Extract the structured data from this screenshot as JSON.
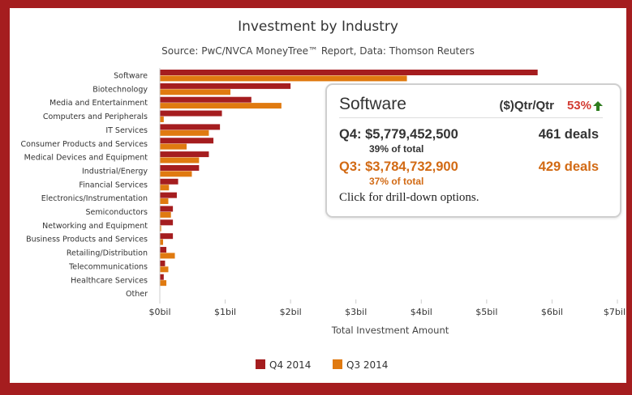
{
  "chart_data": {
    "type": "bar",
    "orientation": "horizontal",
    "title": "Investment by Industry",
    "subtitle": "Source: PwC/NVCA MoneyTree™ Report, Data: Thomson Reuters",
    "xlabel": "Total Investment Amount",
    "xlim": [
      0,
      7
    ],
    "x_unit": "billion USD",
    "x_ticks": [
      "$0bil",
      "$1bil",
      "$2bil",
      "$3bil",
      "$4bil",
      "$5bil",
      "$6bil",
      "$7bil"
    ],
    "categories": [
      "Software",
      "Biotechnology",
      "Media and Entertainment",
      "Computers and Peripherals",
      "IT Services",
      "Consumer Products and Services",
      "Medical Devices and Equipment",
      "Industrial/Energy",
      "Financial Services",
      "Electronics/Instrumentation",
      "Semiconductors",
      "Networking and Equipment",
      "Business Products and Services",
      "Retailing/Distribution",
      "Telecommunications",
      "Healthcare Services",
      "Other"
    ],
    "series": [
      {
        "name": "Q4 2014",
        "color": "#a51d1f",
        "values": [
          5.78,
          2.0,
          1.4,
          0.95,
          0.92,
          0.82,
          0.75,
          0.6,
          0.28,
          0.26,
          0.2,
          0.2,
          0.2,
          0.1,
          0.08,
          0.06,
          0.0
        ]
      },
      {
        "name": "Q3 2014",
        "color": "#e07a10",
        "values": [
          3.78,
          1.08,
          1.86,
          0.06,
          0.75,
          0.41,
          0.6,
          0.49,
          0.14,
          0.13,
          0.17,
          0.02,
          0.05,
          0.23,
          0.13,
          0.1,
          0.0
        ]
      }
    ],
    "grid": false,
    "legend_position": "bottom-center"
  },
  "tooltip": {
    "industry": "Software",
    "qtr_label": "($)Qtr/Qtr",
    "change": "53%",
    "change_direction": "up",
    "arrow_color": "#2e7d1f",
    "q4": {
      "label": "Q4: $5,779,452,500",
      "pct": "39% of total",
      "deals": "461 deals"
    },
    "q3": {
      "label": "Q3: $3,784,732,900",
      "pct": "37% of total",
      "deals": "429 deals"
    },
    "footer": "Click for drill-down options."
  }
}
